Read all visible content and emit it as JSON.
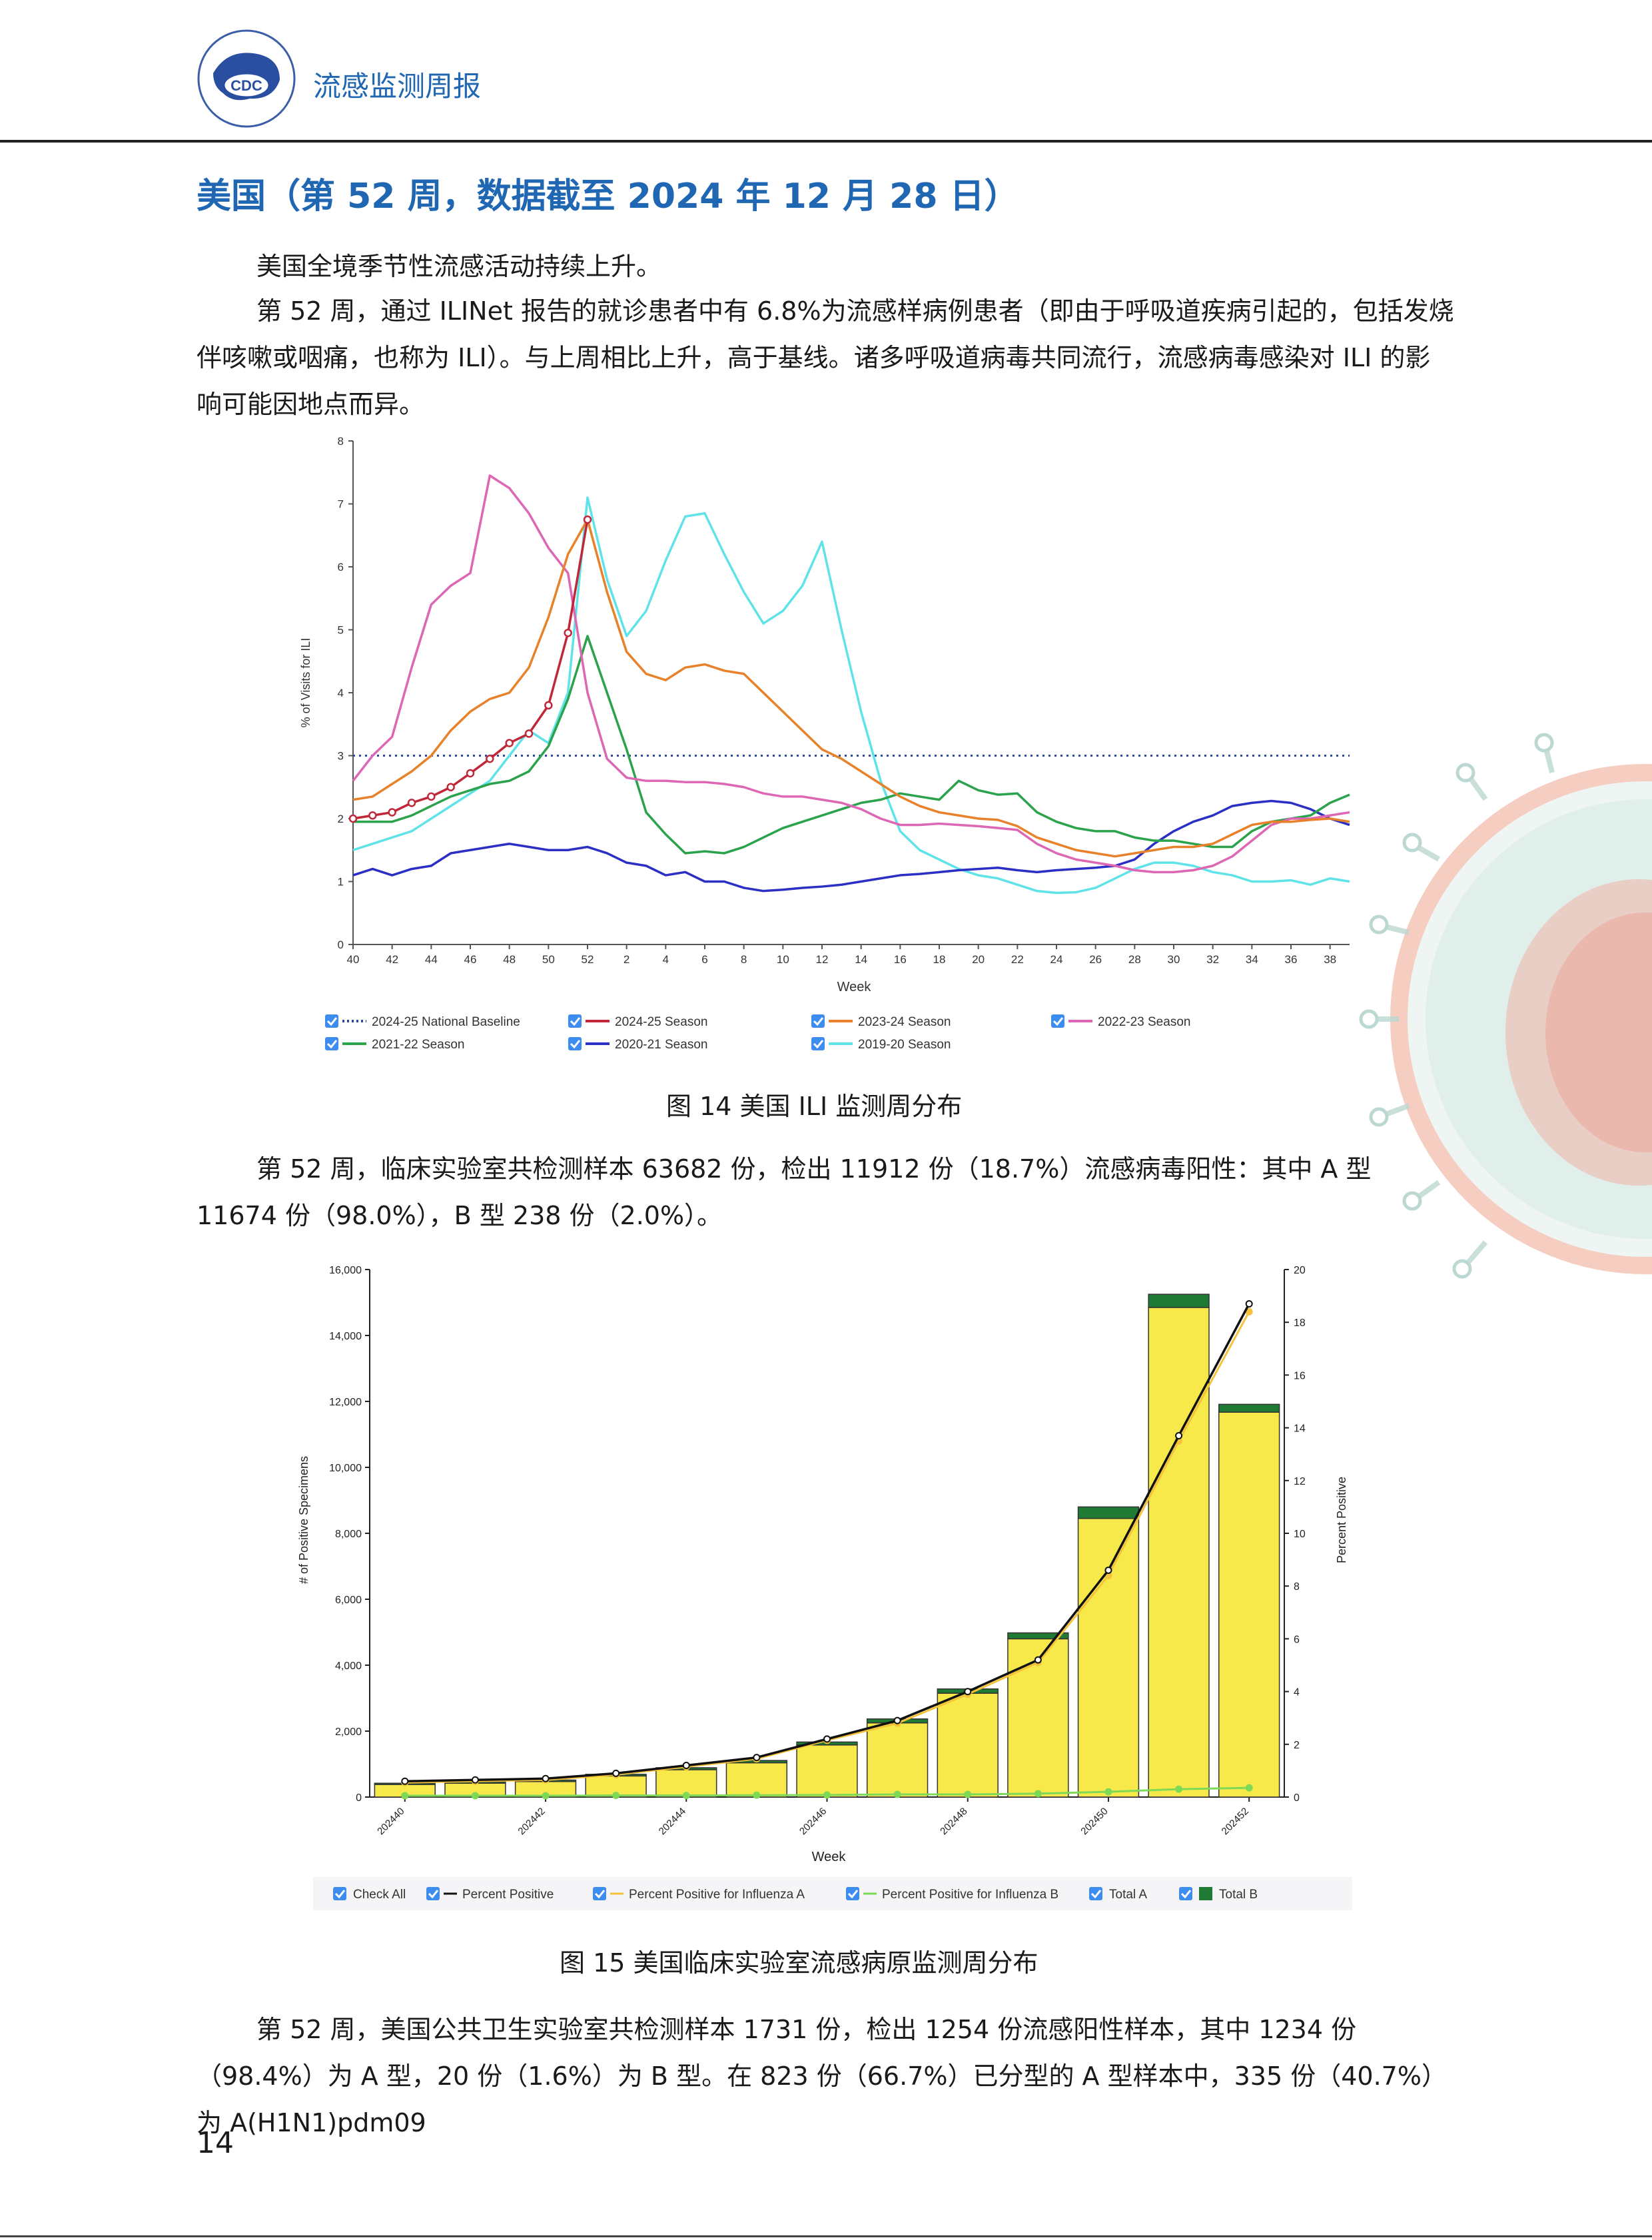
{
  "header": {
    "title": "流感监测周报",
    "logo_text": "CDC"
  },
  "section_title": "美国（第 52 周，数据截至 2024 年 12 月 28 日）",
  "paragraphs": {
    "p1": "美国全境季节性流感活动持续上升。",
    "p2": "第 52 周，通过 ILINet 报告的就诊患者中有 6.8%为流感样病例患者（即由于呼吸道疾病引起的，包括发烧伴咳嗽或咽痛，也称为 ILI）。与上周相比上升，高于基线。诸多呼吸道病毒共同流行，流感病毒感染对 ILI 的影响可能因地点而异。",
    "p3": "第 52 周，临床实验室共检测样本 63682 份，检出 11912 份（18.7%）流感病毒阳性：其中 A 型 11674 份（98.0%），B 型 238 份（2.0%）。",
    "p4": "第 52 周，美国公共卫生实验室共检测样本 1731 份，检出 1254 份流感阳性样本，其中 1234 份（98.4%）为 A 型，20 份（1.6%）为 B 型。在 823 份（66.7%）已分型的 A 型样本中，335 份（40.7%）为 A(H1N1)pdm09"
  },
  "captions": {
    "fig14": "图 14    美国 ILI 监测周分布",
    "fig15": "图 15    美国临床实验室流感病原监测周分布"
  },
  "page_number": "14",
  "chart_data": [
    {
      "type": "line",
      "ylabel": "% of Visits for ILI",
      "xlabel": "Week",
      "ylim": [
        0,
        8
      ],
      "yticks": [
        "0",
        "1",
        "2",
        "3",
        "4",
        "5",
        "6",
        "7",
        "8"
      ],
      "xtick_labels": [
        "40",
        "42",
        "44",
        "46",
        "48",
        "50",
        "52",
        "2",
        "4",
        "6",
        "8",
        "10",
        "12",
        "14",
        "16",
        "18",
        "20",
        "22",
        "24",
        "26",
        "28",
        "30",
        "32",
        "34",
        "36",
        "38"
      ],
      "x_weeks": [
        "40",
        "41",
        "42",
        "43",
        "44",
        "45",
        "46",
        "47",
        "48",
        "49",
        "50",
        "51",
        "52",
        "1",
        "2",
        "3",
        "4",
        "5",
        "6",
        "7",
        "8",
        "9",
        "10",
        "11",
        "12",
        "13",
        "14",
        "15",
        "16",
        "17",
        "18",
        "19",
        "20",
        "21",
        "22",
        "23",
        "24",
        "25",
        "26",
        "27",
        "28",
        "29",
        "30",
        "31",
        "32",
        "33",
        "34",
        "35",
        "36",
        "37",
        "38",
        "39"
      ],
      "baseline": 3.0,
      "series": [
        {
          "name": "2024-25 National Baseline",
          "color": "#2e4a9e",
          "style": "dotted",
          "values": []
        },
        {
          "name": "2024-25 Season",
          "color": "#c0283a",
          "values": [
            2.0,
            2.05,
            2.1,
            2.25,
            2.35,
            2.5,
            2.72,
            2.95,
            3.2,
            3.35,
            3.8,
            4.95,
            6.75
          ]
        },
        {
          "name": "2023-24 Season",
          "color": "#e8822a",
          "values": [
            2.3,
            2.35,
            2.55,
            2.75,
            3.0,
            3.4,
            3.7,
            3.9,
            4.0,
            4.4,
            5.2,
            6.2,
            6.75,
            5.6,
            4.65,
            4.3,
            4.2,
            4.4,
            4.45,
            4.35,
            4.3,
            4.0,
            3.7,
            3.4,
            3.1,
            2.95,
            2.75,
            2.55,
            2.35,
            2.2,
            2.1,
            2.05,
            2.0,
            1.98,
            1.88,
            1.7,
            1.6,
            1.5,
            1.45,
            1.4,
            1.45,
            1.5,
            1.55,
            1.55,
            1.6,
            1.75,
            1.9,
            1.95,
            1.95,
            1.98,
            2.0,
            1.95
          ]
        },
        {
          "name": "2022-23 Season",
          "color": "#dd67b5",
          "values": [
            2.6,
            3.0,
            3.3,
            4.4,
            5.4,
            5.7,
            5.9,
            7.45,
            7.25,
            6.85,
            6.3,
            5.9,
            4.0,
            2.95,
            2.65,
            2.6,
            2.6,
            2.58,
            2.58,
            2.55,
            2.5,
            2.4,
            2.35,
            2.35,
            2.3,
            2.25,
            2.15,
            2.0,
            1.9,
            1.9,
            1.92,
            1.9,
            1.88,
            1.85,
            1.82,
            1.6,
            1.45,
            1.35,
            1.3,
            1.25,
            1.18,
            1.15,
            1.15,
            1.18,
            1.25,
            1.4,
            1.65,
            1.9,
            2.0,
            2.0,
            2.05,
            2.1
          ]
        },
        {
          "name": "2021-22 Season",
          "color": "#2ba24c",
          "values": [
            1.95,
            1.95,
            1.95,
            2.05,
            2.2,
            2.35,
            2.45,
            2.55,
            2.6,
            2.75,
            3.15,
            3.9,
            4.9,
            4.0,
            3.1,
            2.1,
            1.75,
            1.45,
            1.48,
            1.45,
            1.55,
            1.7,
            1.85,
            1.95,
            2.05,
            2.15,
            2.25,
            2.3,
            2.4,
            2.35,
            2.3,
            2.6,
            2.45,
            2.38,
            2.4,
            2.1,
            1.95,
            1.85,
            1.8,
            1.8,
            1.7,
            1.65,
            1.65,
            1.6,
            1.55,
            1.55,
            1.8,
            1.95,
            2.0,
            2.05,
            2.25,
            2.38
          ]
        },
        {
          "name": "2020-21 Season",
          "color": "#2b2fc4",
          "values": [
            1.1,
            1.2,
            1.1,
            1.2,
            1.25,
            1.45,
            1.5,
            1.55,
            1.6,
            1.55,
            1.5,
            1.5,
            1.55,
            1.45,
            1.3,
            1.25,
            1.1,
            1.15,
            1.0,
            1.0,
            0.9,
            0.85,
            0.87,
            0.9,
            0.92,
            0.95,
            1.0,
            1.05,
            1.1,
            1.12,
            1.15,
            1.18,
            1.2,
            1.22,
            1.18,
            1.15,
            1.18,
            1.2,
            1.22,
            1.25,
            1.35,
            1.6,
            1.8,
            1.95,
            2.05,
            2.2,
            2.25,
            2.28,
            2.25,
            2.15,
            2.0,
            1.9
          ]
        },
        {
          "name": "2019-20 Season",
          "color": "#5fe3e8",
          "values": [
            1.5,
            1.6,
            1.7,
            1.8,
            2.0,
            2.2,
            2.4,
            2.6,
            3.0,
            3.4,
            3.2,
            4.0,
            7.1,
            5.8,
            4.9,
            5.3,
            6.1,
            6.8,
            6.85,
            6.2,
            5.6,
            5.1,
            5.3,
            5.7,
            6.4,
            5.0,
            3.7,
            2.6,
            1.8,
            1.5,
            1.35,
            1.2,
            1.1,
            1.05,
            0.95,
            0.85,
            0.82,
            0.83,
            0.9,
            1.05,
            1.2,
            1.3,
            1.3,
            1.25,
            1.15,
            1.1,
            1.0,
            1.0,
            1.02,
            0.95,
            1.05,
            1.0
          ]
        }
      ]
    },
    {
      "type": "bar",
      "xlabel": "Week",
      "ylabel": "# of Positive Specimens",
      "y2label": "Percent Positive",
      "ylim": [
        0,
        16000
      ],
      "y2lim": [
        0,
        20
      ],
      "yticks": [
        "0",
        "2,000",
        "4,000",
        "6,000",
        "8,000",
        "10,000",
        "12,000",
        "14,000",
        "16,000"
      ],
      "y2ticks": [
        "0",
        "2",
        "4",
        "6",
        "8",
        "10",
        "12",
        "14",
        "16",
        "18",
        "20"
      ],
      "categories": [
        "202440",
        "202441",
        "202442",
        "202443",
        "202444",
        "202445",
        "202446",
        "202447",
        "202448",
        "202449",
        "202450",
        "202451",
        "202452"
      ],
      "xtick_labels": [
        "202440",
        "202442",
        "202444",
        "202446",
        "202448",
        "202450",
        "202452"
      ],
      "series": [
        {
          "name": "Total A",
          "color": "#f7e94a",
          "values": [
            380,
            420,
            470,
            640,
            830,
            1040,
            1580,
            2250,
            3150,
            4800,
            8450,
            14850,
            11674
          ]
        },
        {
          "name": "Total B",
          "color": "#1f7a34",
          "values": [
            40,
            42,
            45,
            50,
            60,
            70,
            90,
            120,
            130,
            180,
            350,
            400,
            238
          ]
        },
        {
          "name": "Percent Positive",
          "color": "#111111",
          "axis": "right",
          "values": [
            0.6,
            0.65,
            0.7,
            0.9,
            1.2,
            1.5,
            2.2,
            2.9,
            4.0,
            5.2,
            8.6,
            13.7,
            18.7
          ]
        },
        {
          "name": "Percent Positive for Influenza A",
          "color": "#f5c33b",
          "axis": "right",
          "values": [
            0.55,
            0.6,
            0.65,
            0.85,
            1.15,
            1.45,
            2.15,
            2.8,
            3.9,
            5.1,
            8.4,
            13.5,
            18.4
          ]
        },
        {
          "name": "Percent Positive for Influenza B",
          "color": "#7ed957",
          "axis": "right",
          "values": [
            0.05,
            0.05,
            0.05,
            0.06,
            0.06,
            0.07,
            0.08,
            0.1,
            0.1,
            0.13,
            0.2,
            0.3,
            0.35
          ]
        }
      ],
      "legend": [
        "Check All",
        "Percent Positive",
        "Percent Positive for Influenza A",
        "Percent Positive for Influenza B",
        "Total A",
        "Total B"
      ]
    }
  ]
}
